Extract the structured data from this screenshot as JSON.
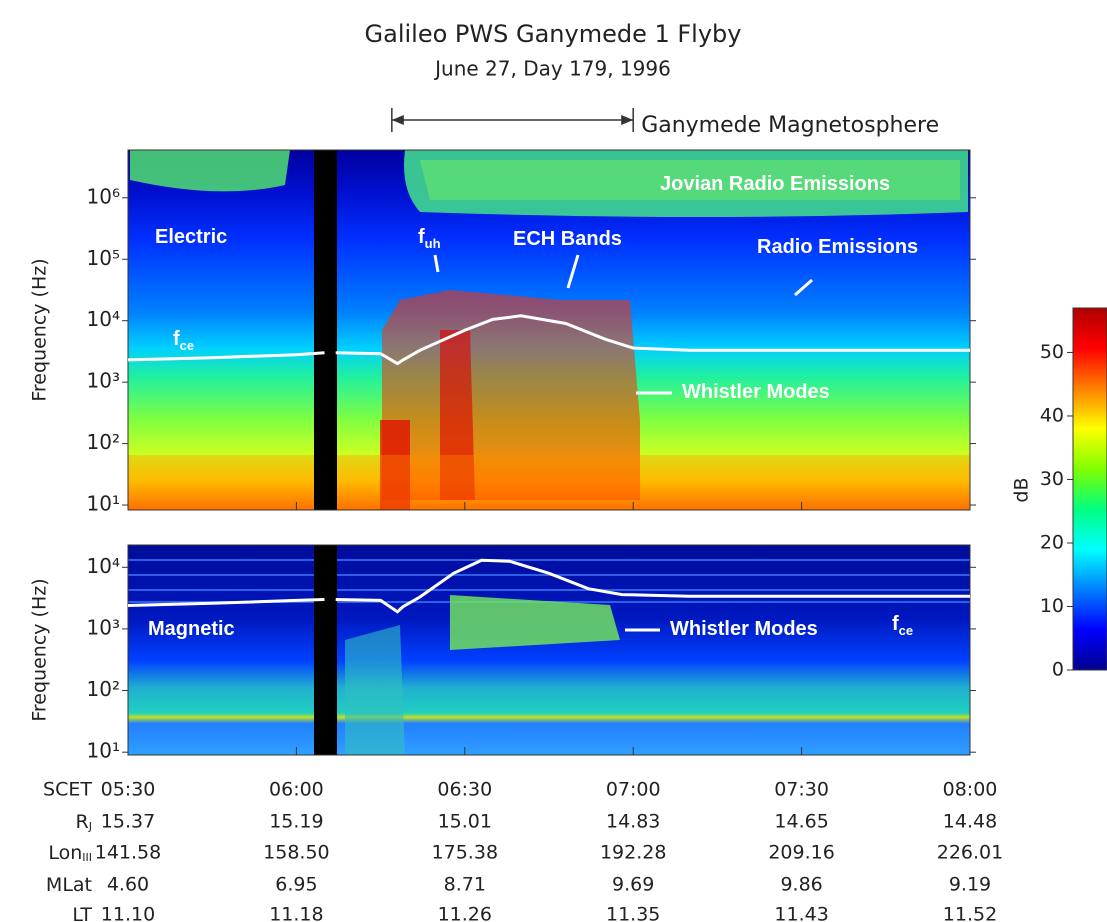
{
  "header": {
    "title": "Galileo PWS Ganymede 1 Flyby",
    "subtitle": "June 27, Day 179, 1996"
  },
  "chart_data": [
    {
      "type": "line",
      "ylabel": "Frequency (Hz)",
      "log_y": true,
      "xlim": [
        330,
        480
      ],
      "ylim": [
        8.3,
        6000000
      ],
      "yticks": [
        {
          "value": 10,
          "label": "10¹"
        },
        {
          "value": 100,
          "label": "10²"
        },
        {
          "value": 1000,
          "label": "10³"
        },
        {
          "value": 10000,
          "label": "10⁴"
        },
        {
          "value": 100000,
          "label": "10⁵"
        },
        {
          "value": 1000000,
          "label": "10⁶"
        }
      ],
      "color": "#ffffff",
      "x": [
        330,
        345,
        360,
        365,
        366,
        367,
        375,
        378,
        379,
        382,
        390,
        395,
        400,
        408,
        415,
        420,
        430,
        450,
        480
      ],
      "values": [
        2300,
        2500,
        2800,
        3000,
        null,
        3000,
        2900,
        2000,
        2300,
        3300,
        7000,
        10500,
        12000,
        9000,
        5000,
        3600,
        3300,
        3300,
        3300
      ],
      "span": {
        "label": "Ganymede Magnetosphere",
        "x": [
          377,
          420
        ]
      },
      "annotations": [
        {
          "text": "Electric"
        },
        {
          "text": "Jovian Radio Emissions"
        },
        {
          "text": "Radio Emissions"
        },
        {
          "text": "ECH Bands"
        },
        {
          "text": "f",
          "sub": "uh"
        },
        {
          "text": "f",
          "sub": "ce"
        },
        {
          "text": "Whistler Modes"
        }
      ]
    },
    {
      "type": "line",
      "ylabel": "Frequency (Hz)",
      "log_y": true,
      "xlim": [
        330,
        480
      ],
      "ylim": [
        9,
        23000
      ],
      "yticks": [
        {
          "value": 10,
          "label": "10¹"
        },
        {
          "value": 100,
          "label": "10²"
        },
        {
          "value": 1000,
          "label": "10³"
        },
        {
          "value": 10000,
          "label": "10⁴"
        }
      ],
      "xlabel": "SCET",
      "xticks": [
        {
          "value": 330,
          "label": "05:30"
        },
        {
          "value": 360,
          "label": "06:00"
        },
        {
          "value": 390,
          "label": "06:30"
        },
        {
          "value": 420,
          "label": "07:00"
        },
        {
          "value": 450,
          "label": "07:30"
        },
        {
          "value": 480,
          "label": "08:00"
        }
      ],
      "color": "#ffffff",
      "x": [
        330,
        345,
        360,
        365,
        366,
        367,
        375,
        378,
        379,
        382,
        388,
        393,
        398,
        405,
        412,
        418,
        430,
        450,
        480
      ],
      "values": [
        2400,
        2600,
        2900,
        3000,
        null,
        3000,
        2900,
        1900,
        2300,
        3300,
        8000,
        13000,
        12500,
        8000,
        4500,
        3600,
        3400,
        3400,
        3400
      ],
      "annotations": [
        {
          "text": "Magnetic"
        },
        {
          "text": "Whistler Modes"
        },
        {
          "text": "f",
          "sub": "ce"
        }
      ]
    },
    {
      "type": "colorbar",
      "ylabel": "dB",
      "ylim": [
        0,
        57
      ],
      "yticks": [
        0,
        10,
        20,
        30,
        40,
        50
      ],
      "colors": [
        "#00008f",
        "#0000ff",
        "#0080ff",
        "#00ffff",
        "#00ff80",
        "#80ff00",
        "#ffff00",
        "#ff8000",
        "#ff0000",
        "#b00000"
      ]
    }
  ],
  "ephemeris": [
    {
      "label": "R",
      "sub": "J",
      "values": [
        "15.37",
        "15.19",
        "15.01",
        "14.83",
        "14.65",
        "14.48"
      ]
    },
    {
      "label": "Lon",
      "sub": "III",
      "values": [
        "141.58",
        "158.50",
        "175.38",
        "192.28",
        "209.16",
        "226.01"
      ]
    },
    {
      "label": "MLat",
      "values": [
        "4.60",
        "6.95",
        "8.71",
        "9.69",
        "9.86",
        "9.19"
      ]
    },
    {
      "label": "LT",
      "values": [
        "11.10",
        "11.18",
        "11.26",
        "11.35",
        "11.43",
        "11.52"
      ]
    }
  ]
}
